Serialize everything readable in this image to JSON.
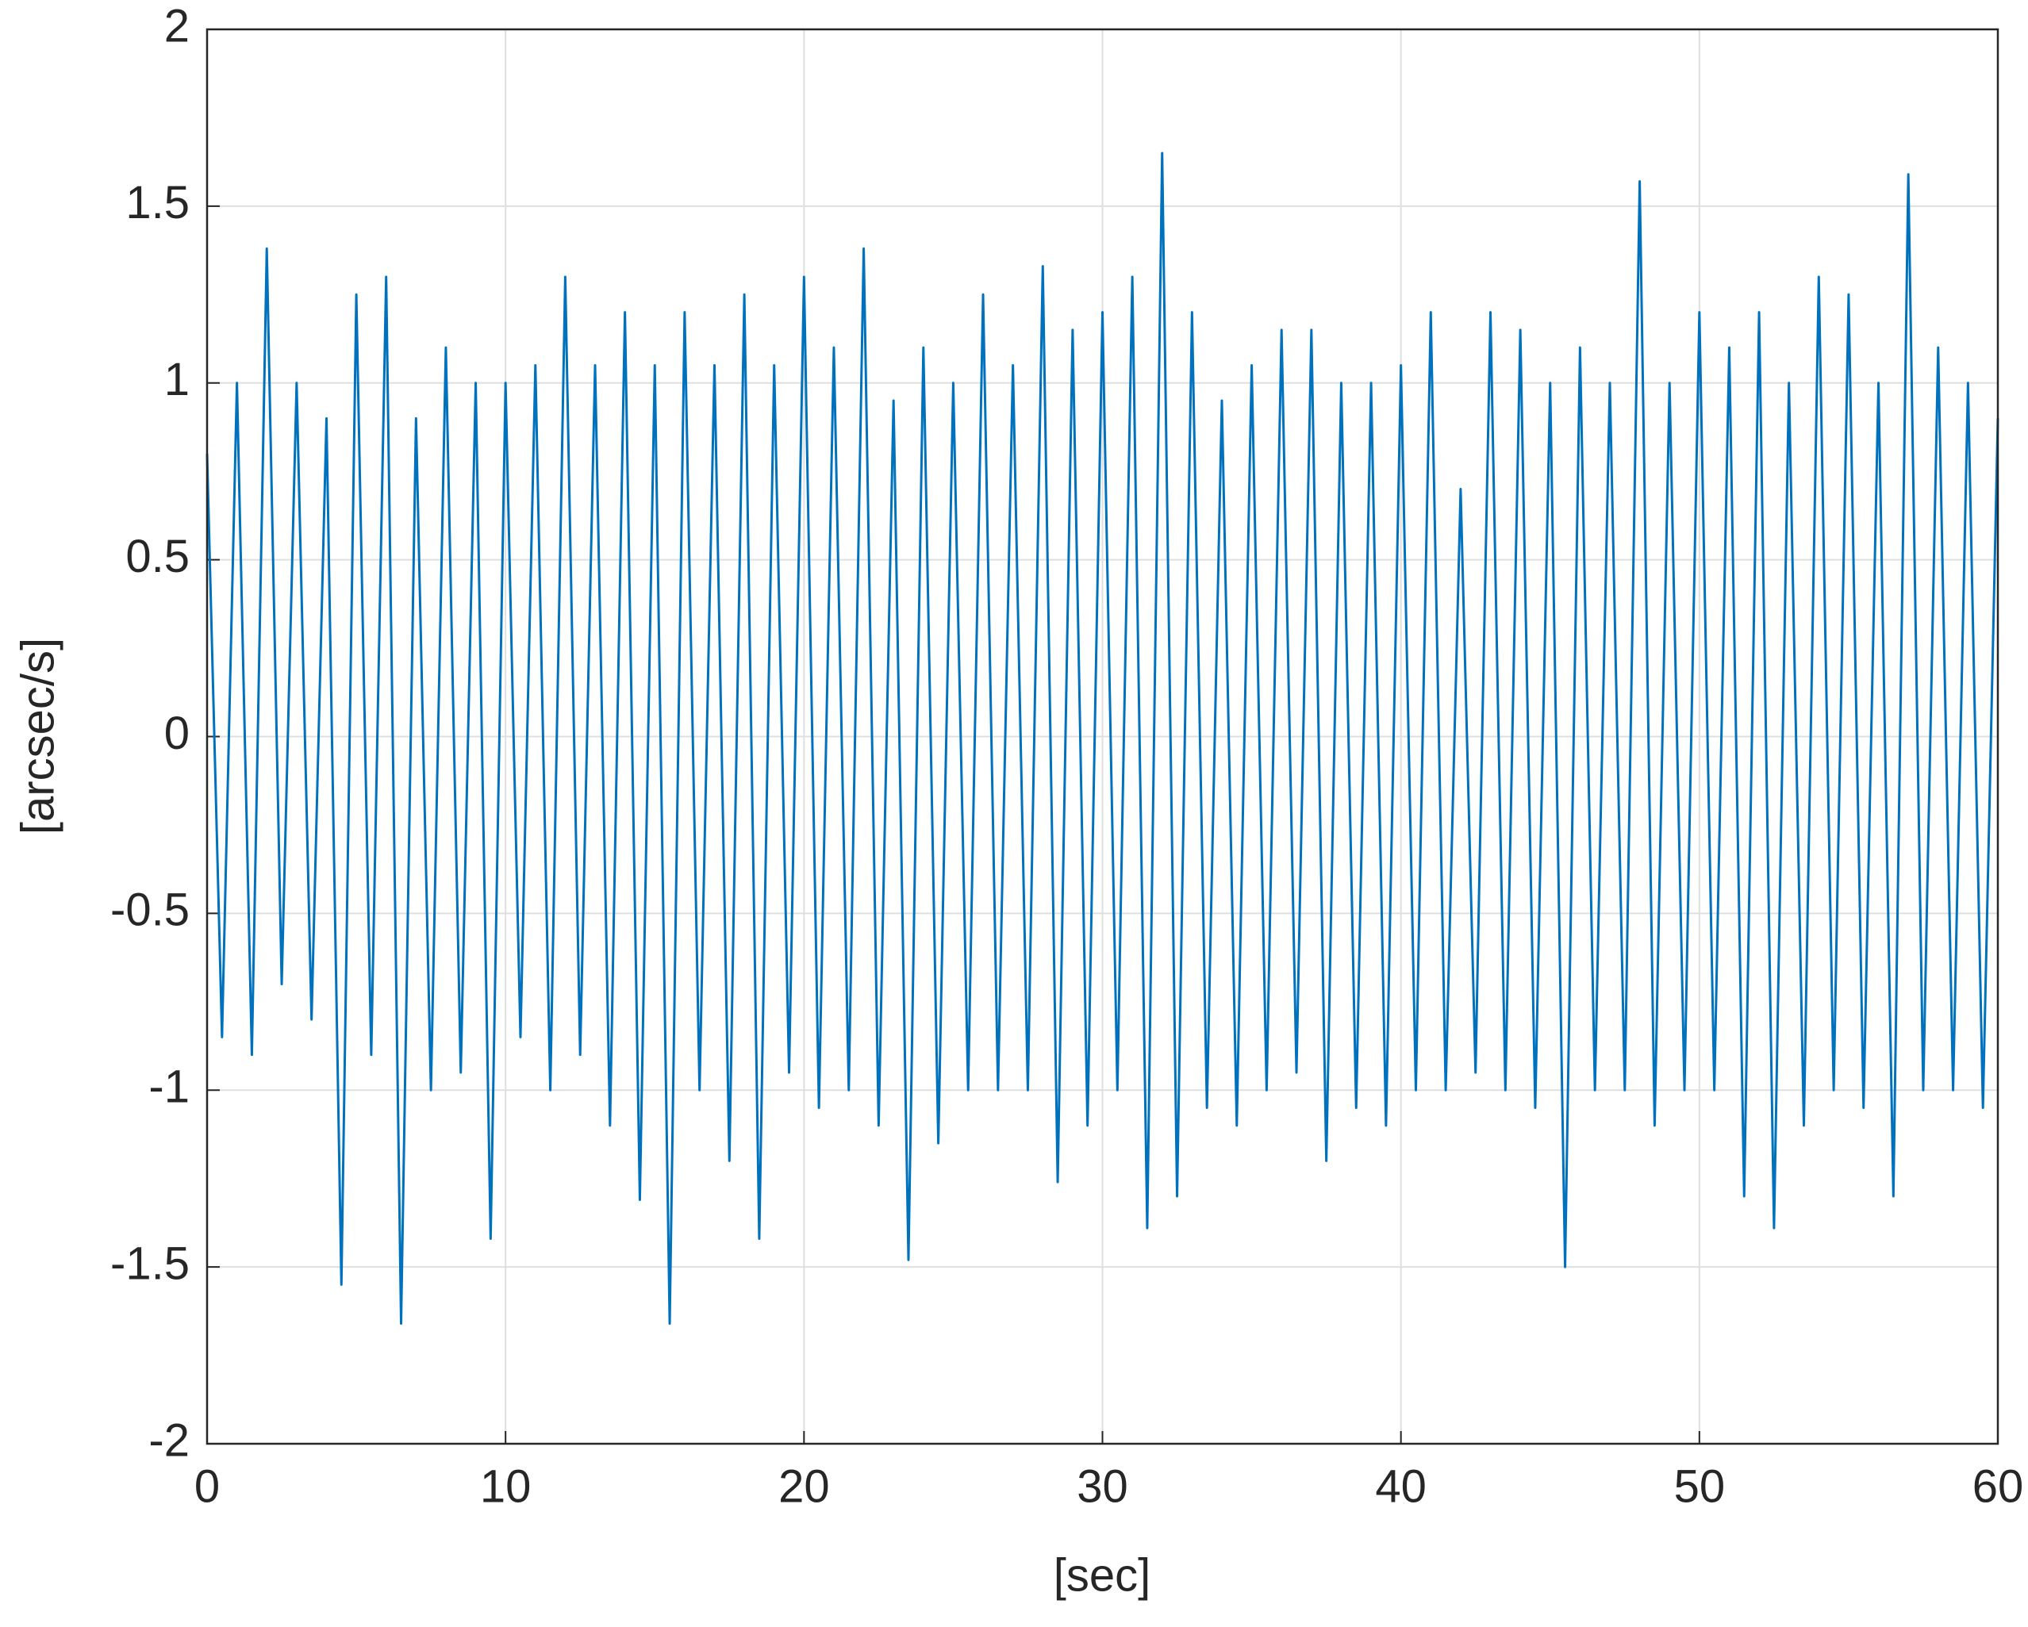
{
  "chart_data": {
    "type": "line",
    "xlabel": "[sec]",
    "ylabel": "[arcsec/s]",
    "color": "#0072bd",
    "grid": true,
    "xlim": [
      0,
      60
    ],
    "xticks": [
      0,
      10,
      20,
      30,
      40,
      50,
      60
    ],
    "ylim": [
      -2,
      2
    ],
    "yticks": [
      -2,
      -1.5,
      -1,
      -0.5,
      0,
      0.5,
      1,
      1.5,
      2
    ],
    "x": [
      0,
      0.5,
      1,
      1.5,
      2,
      2.5,
      3,
      3.5,
      4,
      4.5,
      5,
      5.5,
      6,
      6.5,
      7,
      7.5,
      8,
      8.5,
      9,
      9.5,
      10,
      10.5,
      11,
      11.5,
      12,
      12.5,
      13,
      13.5,
      14,
      14.5,
      15,
      15.5,
      16,
      16.5,
      17,
      17.5,
      18,
      18.5,
      19,
      19.5,
      20,
      20.5,
      21,
      21.5,
      22,
      22.5,
      23,
      23.5,
      24,
      24.5,
      25,
      25.5,
      26,
      26.5,
      27,
      27.5,
      28,
      28.5,
      29,
      29.5,
      30,
      30.5,
      31,
      31.5,
      32,
      32.5,
      33,
      33.5,
      34,
      34.5,
      35,
      35.5,
      36,
      36.5,
      37,
      37.5,
      38,
      38.5,
      39,
      39.5,
      40,
      40.5,
      41,
      41.5,
      42,
      42.5,
      43,
      43.5,
      44,
      44.5,
      45,
      45.5,
      46,
      46.5,
      47,
      47.5,
      48,
      48.5,
      49,
      49.5,
      50,
      50.5,
      51,
      51.5,
      52,
      52.5,
      53,
      53.5,
      54,
      54.5,
      55,
      55.5,
      56,
      56.5,
      57,
      57.5,
      58,
      58.5,
      59,
      59.5,
      60
    ],
    "values": [
      0.8,
      -0.85,
      1.0,
      -0.9,
      1.38,
      -0.7,
      1.0,
      -0.8,
      0.9,
      -1.55,
      1.25,
      -0.9,
      1.3,
      -1.66,
      0.9,
      -1.0,
      1.1,
      -0.95,
      1.0,
      -1.42,
      1.0,
      -0.85,
      1.05,
      -1.0,
      1.3,
      -0.9,
      1.05,
      -1.1,
      1.2,
      -1.31,
      1.05,
      -1.66,
      1.2,
      -1.0,
      1.05,
      -1.2,
      1.25,
      -1.42,
      1.05,
      -0.95,
      1.3,
      -1.05,
      1.1,
      -1.0,
      1.38,
      -1.1,
      0.95,
      -1.48,
      1.1,
      -1.15,
      1.0,
      -1.0,
      1.25,
      -1.0,
      1.05,
      -1.0,
      1.33,
      -1.26,
      1.15,
      -1.1,
      1.2,
      -1.0,
      1.3,
      -1.39,
      1.65,
      -1.3,
      1.2,
      -1.05,
      0.95,
      -1.1,
      1.05,
      -1.0,
      1.15,
      -0.95,
      1.15,
      -1.2,
      1.0,
      -1.05,
      1.0,
      -1.1,
      1.05,
      -1.0,
      1.2,
      -1.0,
      0.7,
      -0.95,
      1.2,
      -1.0,
      1.15,
      -1.05,
      1.0,
      -1.5,
      1.1,
      -1.0,
      1.0,
      -1.0,
      1.57,
      -1.1,
      1.0,
      -1.0,
      1.2,
      -1.0,
      1.1,
      -1.3,
      1.2,
      -1.39,
      1.0,
      -1.1,
      1.3,
      -1.0,
      1.25,
      -1.05,
      1.0,
      -1.3,
      1.59,
      -1.0,
      1.1,
      -1.0,
      1.0,
      -1.05,
      0.9
    ]
  }
}
